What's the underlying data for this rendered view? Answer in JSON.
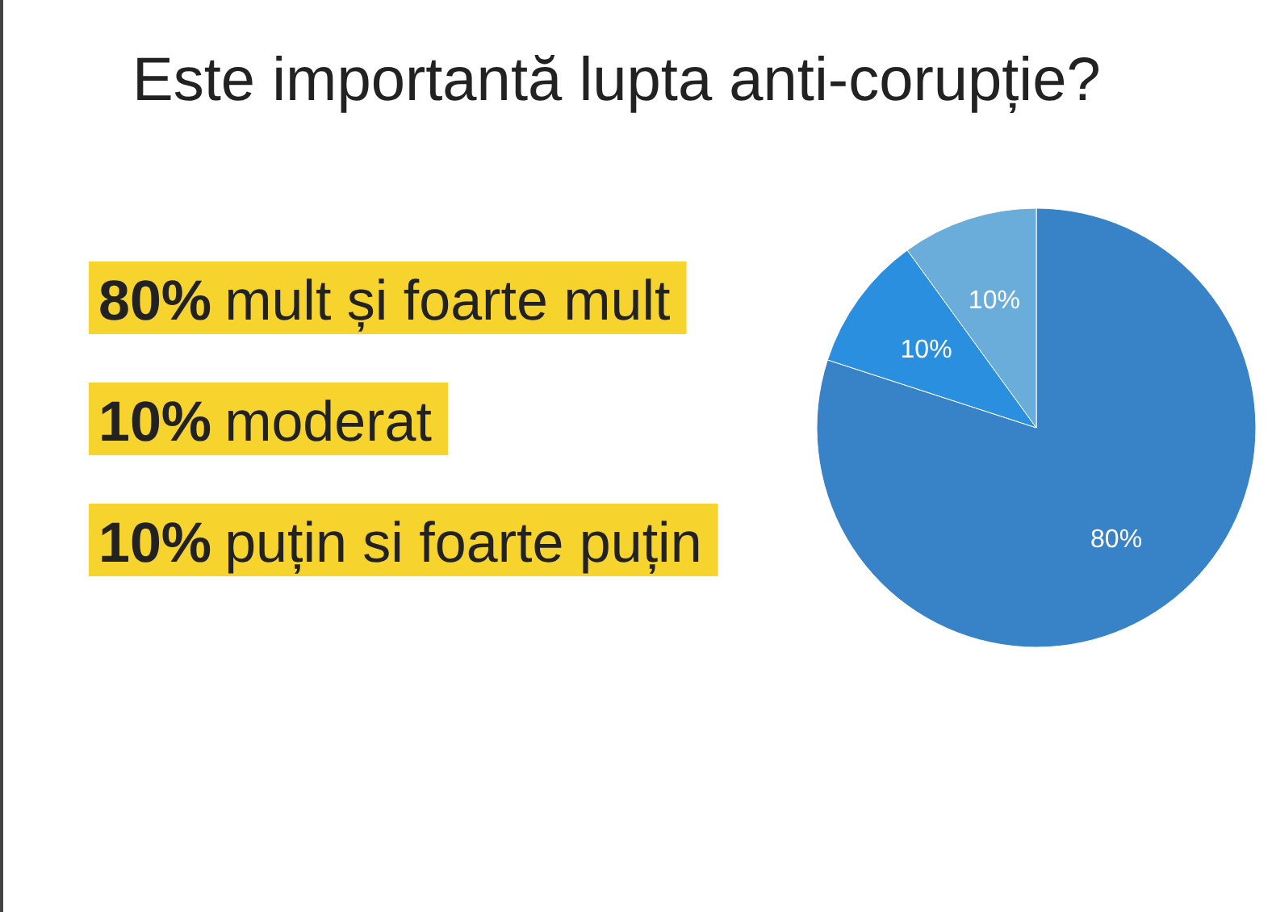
{
  "chart_data": {
    "type": "pie",
    "title": "Este importantă lupta anti-corupție?",
    "categories": [
      null,
      null,
      null
    ],
    "values": [
      80,
      10,
      10
    ],
    "colors": [
      "#3883c8",
      "#2b8fe0",
      "#6badda"
    ],
    "value_labels": [
      "80%",
      "10%",
      "10%"
    ],
    "annotations": [
      "80% mult și foarte mult",
      "10% moderat",
      "10% puțin si foarte puțin"
    ]
  }
}
